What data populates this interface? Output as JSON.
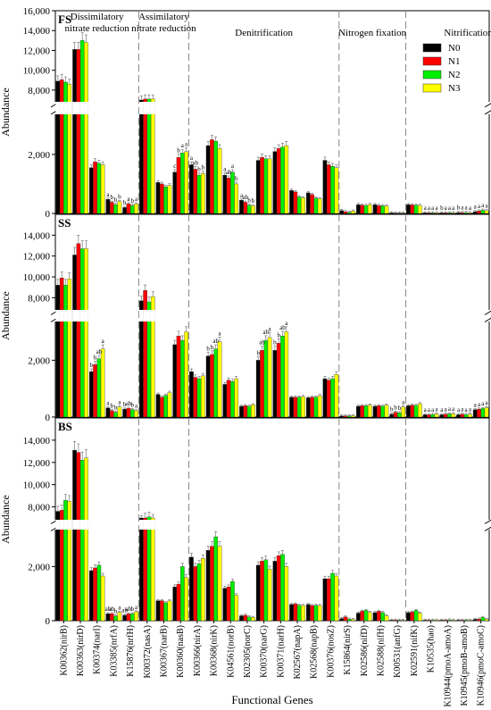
{
  "chart_data": {
    "type": "bar",
    "xlabel": "Functional Genes",
    "ylabel": "Abundance",
    "legend": {
      "placement": "top-right",
      "entries": [
        "N0",
        "N1",
        "N2",
        "N3"
      ],
      "colors": [
        "#000000",
        "#ff0000",
        "#00ee00",
        "#ffff00"
      ]
    },
    "groups": [
      "Dissimilatory nitrate reduction",
      "Assimilatory nitrate reduction",
      "Denitrification",
      "Nitrogen fixation",
      "Nitrification"
    ],
    "group_titles": [
      "Dissimilatory\nnitrate reduction",
      "Assimilatory\nnitrate reduction",
      "Denitrification",
      "Nitrogen fixation",
      "Nitrification"
    ],
    "group_sizes": [
      5,
      3,
      9,
      4,
      5
    ],
    "categories": [
      "K00362(nirB)",
      "K00363(nirD)",
      "K00374(narI)",
      "K03385(nrfA)",
      "K15876(nrfH)",
      "K00372(nasA)",
      "K00367(narB)",
      "K00360(nasB)",
      "K00366(nirA)",
      "K00368(nirK)",
      "K04561(norB)",
      "K02305(norC)",
      "K00370(narG)",
      "K00371(narH)",
      "K02567(napA)",
      "K02568(napB)",
      "K00376(nosZ)",
      "K15864(nirS)",
      "K02586(nifD)",
      "K02588(nifH)",
      "K00531(anfG)",
      "K02591(nifK)",
      "K10535(hao)",
      "K10944(pmoA-amoA)",
      "K10945(pmoB-amoB)",
      "K10946(pmoC-amoC)"
    ],
    "y_axis": {
      "lower_range": [
        0,
        3300
      ],
      "lower_ticks": [
        0,
        2000
      ],
      "upper_range": [
        7000,
        16000
      ],
      "upper_ticks": [
        8000,
        10000,
        12000,
        14000,
        16000
      ]
    },
    "panels": [
      {
        "label": "FS",
        "series": [
          {
            "name": "N0",
            "values": [
              8900,
              12100,
              1550,
              480,
              200,
              7000,
              1050,
              1400,
              1650,
              2300,
              1300,
              450,
              1800,
              2100,
              780,
              700,
              1800,
              100,
              300,
              300,
              20,
              300,
              20,
              20,
              30,
              60
            ]
          },
          {
            "name": "N1",
            "values": [
              9050,
              12100,
              1750,
              380,
              330,
              7100,
              1000,
              1900,
              1500,
              2500,
              1200,
              380,
              1900,
              2200,
              730,
              640,
              1650,
              60,
              280,
              270,
              15,
              290,
              20,
              20,
              30,
              80
            ]
          },
          {
            "name": "N2",
            "values": [
              8800,
              13000,
              1700,
              300,
              270,
              7100,
              900,
              2050,
              1300,
              2450,
              1400,
              280,
              1850,
              2250,
              560,
              520,
              1600,
              40,
              270,
              260,
              15,
              280,
              20,
              20,
              30,
              110
            ]
          },
          {
            "name": "N3",
            "values": [
              8600,
              12800,
              1650,
              400,
              320,
              7100,
              950,
              2100,
              1350,
              2200,
              1000,
              260,
              1850,
              2300,
              530,
              500,
              1550,
              80,
              300,
              250,
              15,
              270,
              20,
              20,
              25,
              90
            ]
          }
        ],
        "letters": [
          {
            "cat": 3,
            "text": [
              "a",
              "b",
              "b",
              "b"
            ]
          },
          {
            "cat": 4,
            "text": [
              "b",
              "a",
              "b",
              "a"
            ]
          },
          {
            "cat": 7,
            "text": [
              "c",
              "b",
              "a",
              "a"
            ]
          },
          {
            "cat": 8,
            "text": [
              "a",
              "ab",
              "b",
              "b"
            ]
          },
          {
            "cat": 10,
            "text": [
              "a",
              "ab",
              "a",
              "b"
            ]
          },
          {
            "cat": 11,
            "text": [
              "a",
              "ab",
              "b",
              "b"
            ]
          },
          {
            "cat": 22,
            "text": [
              "a",
              "a",
              "a",
              "a"
            ]
          },
          {
            "cat": 23,
            "text": [
              "b",
              "a",
              "a",
              "a"
            ]
          },
          {
            "cat": 24,
            "text": [
              "b",
              "a",
              "a",
              "a"
            ]
          },
          {
            "cat": 25,
            "text": [
              "a",
              "a",
              "a",
              "a"
            ]
          }
        ]
      },
      {
        "label": "SS",
        "series": [
          {
            "name": "N0",
            "values": [
              9200,
              12100,
              1600,
              320,
              280,
              7700,
              800,
              2550,
              1600,
              2150,
              1150,
              380,
              2000,
              2350,
              700,
              680,
              1350,
              40,
              380,
              380,
              100,
              400,
              80,
              80,
              80,
              260
            ]
          },
          {
            "name": "N1",
            "values": [
              9900,
              13200,
              1850,
              230,
              310,
              8700,
              700,
              2850,
              1400,
              2200,
              1300,
              400,
              2350,
              2600,
              700,
              700,
              1300,
              40,
              400,
              400,
              170,
              420,
              80,
              100,
              100,
              280
            ]
          },
          {
            "name": "N2",
            "values": [
              9200,
              12700,
              2050,
              170,
              260,
              7600,
              760,
              2700,
              1350,
              2400,
              1250,
              380,
              2700,
              2850,
              700,
              700,
              1350,
              40,
              400,
              380,
              150,
              410,
              90,
              110,
              90,
              300
            ]
          },
          {
            "name": "N3",
            "values": [
              9800,
              12700,
              2400,
              350,
              220,
              8100,
              860,
              3000,
              1450,
              2650,
              1350,
              430,
              2800,
              3000,
              720,
              750,
              1500,
              50,
              420,
              420,
              350,
              470,
              100,
              120,
              100,
              330
            ]
          }
        ],
        "letters": [
          {
            "cat": 2,
            "text": [
              "b",
              "b",
              "ab",
              "a"
            ]
          },
          {
            "cat": 3,
            "text": [
              "a",
              "b",
              "b",
              "a"
            ]
          },
          {
            "cat": 4,
            "text": [
              "b",
              "ab",
              "b",
              "a"
            ]
          },
          {
            "cat": 9,
            "text": [
              "b",
              "b",
              "ab",
              "a"
            ]
          },
          {
            "cat": 12,
            "text": [
              "b",
              "ab",
              "ab",
              "a"
            ]
          },
          {
            "cat": 13,
            "text": [
              "b",
              "b",
              "ab",
              "a"
            ]
          },
          {
            "cat": 20,
            "text": [
              "b",
              "b",
              "b",
              "a"
            ]
          },
          {
            "cat": 22,
            "text": [
              "a",
              "a",
              "a",
              "a"
            ]
          },
          {
            "cat": 23,
            "text": [
              "a",
              "a",
              "a",
              "a"
            ]
          },
          {
            "cat": 24,
            "text": [
              "a",
              "a",
              "a",
              "a"
            ]
          },
          {
            "cat": 25,
            "text": [
              "a",
              "a",
              "a",
              "a"
            ]
          }
        ]
      },
      {
        "label": "BS",
        "series": [
          {
            "name": "N0",
            "values": [
              7600,
              13100,
              1850,
              260,
              200,
              6800,
              740,
              1250,
              2350,
              2600,
              1200,
              180,
              2050,
              2200,
              600,
              600,
              1550,
              80,
              280,
              300,
              20,
              300,
              20,
              20,
              20,
              50
            ]
          },
          {
            "name": "N1",
            "values": [
              7700,
              12900,
              1950,
              260,
              250,
              7000,
              740,
              1350,
              2000,
              2750,
              1250,
              200,
              2200,
              2400,
              620,
              560,
              1550,
              140,
              350,
              350,
              25,
              320,
              20,
              20,
              20,
              60
            ]
          },
          {
            "name": "N2",
            "values": [
              8600,
              12200,
              2050,
              170,
              260,
              7100,
              660,
              2000,
              2100,
              3100,
              1450,
              140,
              2250,
              2450,
              570,
              570,
              1750,
              60,
              380,
              300,
              20,
              380,
              20,
              30,
              20,
              120
            ]
          },
          {
            "name": "N3",
            "values": [
              8500,
              12400,
              1650,
              310,
              330,
              6900,
              730,
              1600,
              2300,
              2750,
              940,
              120,
              1900,
              2000,
              560,
              560,
              1650,
              40,
              300,
              180,
              15,
              280,
              20,
              20,
              20,
              50
            ]
          }
        ],
        "letters": [
          {
            "cat": 3,
            "text": [
              "ab",
              "ab",
              "b",
              "a"
            ]
          },
          {
            "cat": 4,
            "text": [
              "ab",
              "ab",
              "b",
              "a"
            ]
          }
        ]
      }
    ]
  }
}
